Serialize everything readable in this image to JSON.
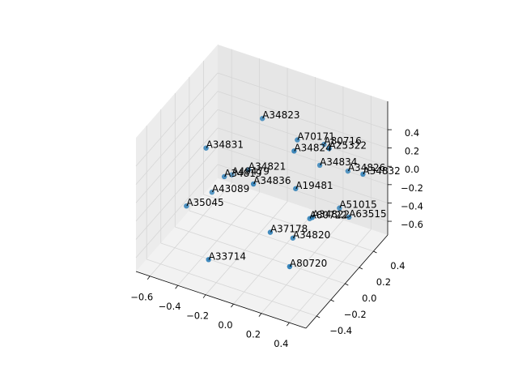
{
  "chart_data": {
    "type": "scatter3d",
    "labels": [
      "A34823",
      "A70171",
      "A80716",
      "A34824",
      "A25322",
      "A34831",
      "A34834",
      "A34826",
      "A34832",
      "A34821",
      "A34819",
      "A49479",
      "A34836",
      "A19481",
      "A43089",
      "A35045",
      "A51015",
      "A80722",
      "A34822",
      "A63515",
      "A37178",
      "A34820",
      "A33714",
      "A80720"
    ],
    "x": [
      -0.15,
      0.05,
      0.14,
      0.18,
      0.38,
      -0.35,
      0.16,
      0.26,
      0.47,
      -0.25,
      -0.27,
      -0.42,
      -0.01,
      0.14,
      -0.41,
      -0.44,
      0.25,
      0.19,
      0.31,
      0.37,
      0.06,
      0.12,
      -0.23,
      0.25
    ],
    "y": [
      0.15,
      0.25,
      0.45,
      -0.05,
      0.05,
      -0.25,
      0.35,
      0.55,
      0.35,
      0.15,
      -0.15,
      0.25,
      -0.25,
      0.05,
      -0.05,
      -0.35,
      0.45,
      0.15,
      -0.05,
      0.35,
      -0.15,
      0.05,
      -0.45,
      -0.25
    ],
    "z": [
      0.58,
      0.36,
      0.18,
      0.57,
      0.61,
      0.51,
      0.05,
      -0.14,
      0.11,
      -0.03,
      0.15,
      -0.26,
      0.29,
      0.05,
      -0.18,
      -0.08,
      -0.46,
      -0.34,
      -0.09,
      -0.41,
      -0.29,
      -0.5,
      -0.47,
      -0.48
    ],
    "color": "#1f77b4",
    "xlim": [
      -0.7,
      0.52
    ],
    "ylim": [
      -0.55,
      0.6
    ],
    "zlim": [
      -0.75,
      0.71
    ],
    "xticks": [
      {
        "value": -0.6,
        "label": "−0.6"
      },
      {
        "value": -0.4,
        "label": "−0.4"
      },
      {
        "value": -0.2,
        "label": "−0.2"
      },
      {
        "value": 0,
        "label": "0.0"
      },
      0.2,
      0.4
    ],
    "yticks": [
      {
        "value": -0.4,
        "label": "−0.4"
      },
      {
        "value": -0.2,
        "label": "−0.2"
      },
      {
        "value": 0,
        "label": "0.0"
      },
      0.2,
      0.4
    ],
    "zticks": [
      {
        "value": -0.6,
        "label": "−0.6"
      },
      {
        "value": -0.4,
        "label": "−0.4"
      },
      {
        "value": -0.2,
        "label": "−0.2"
      },
      {
        "value": 0,
        "label": "0.0"
      },
      0.2,
      0.4
    ],
    "grid": true
  }
}
